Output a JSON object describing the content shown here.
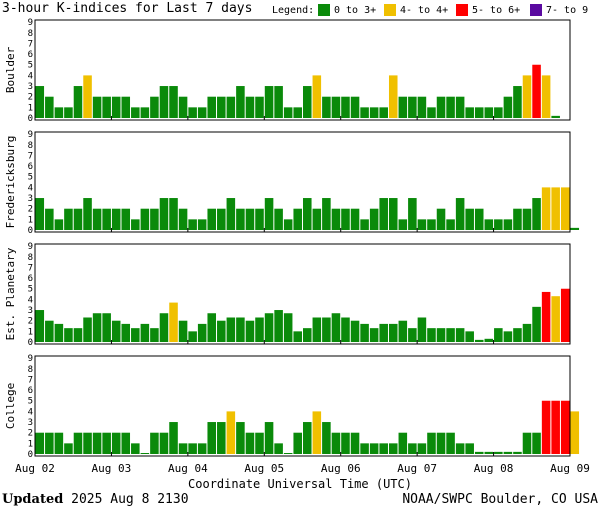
{
  "header": {
    "title": "3-hour K-indices for Last 7 days",
    "legend_label": "Legend:"
  },
  "legend": [
    {
      "label": "0 to 3+",
      "color": "#0a8a0a"
    },
    {
      "label": "4- to 4+",
      "color": "#f0c000"
    },
    {
      "label": "5- to 6+",
      "color": "#ff0000"
    },
    {
      "label": "7- to 9",
      "color": "#5a0aa0"
    }
  ],
  "footer": {
    "updated_label": "Updated",
    "updated_value": "2025 Aug  8 2130",
    "credit": "NOAA/SWPC Boulder, CO USA"
  },
  "chart_data": {
    "type": "bar",
    "xlabel": "Coordinate Universal Time (UTC)",
    "x_ticks": [
      "Aug 02",
      "Aug 03",
      "Aug 04",
      "Aug 05",
      "Aug 06",
      "Aug 07",
      "Aug 08",
      "Aug 09"
    ],
    "y_ticks": [
      0,
      1,
      2,
      3,
      4,
      5,
      6,
      7,
      8,
      9
    ],
    "ylim": [
      0,
      9
    ],
    "bins_per_day": 8,
    "grid": false,
    "panels": [
      {
        "name": "Boulder",
        "values": [
          3,
          2,
          1,
          1,
          3,
          4,
          2,
          2,
          2,
          2,
          1,
          1,
          2,
          3,
          3,
          2,
          1,
          1,
          2,
          2,
          2,
          3,
          2,
          2,
          3,
          3,
          1,
          1,
          3,
          4,
          2,
          2,
          2,
          2,
          1,
          1,
          1,
          4,
          2,
          2,
          2,
          1,
          2,
          2,
          2,
          1,
          1,
          1,
          1,
          2,
          3,
          4,
          5,
          4,
          0.2
        ]
      },
      {
        "name": "Fredericksburg",
        "values": [
          3,
          2,
          1,
          2,
          2,
          3,
          2,
          2,
          2,
          2,
          1,
          2,
          2,
          3,
          3,
          2,
          1,
          1,
          2,
          2,
          3,
          2,
          2,
          2,
          3,
          2,
          1,
          2,
          3,
          2,
          3,
          2,
          2,
          2,
          1,
          2,
          3,
          3,
          1,
          3,
          1,
          1,
          2,
          1,
          3,
          2,
          2,
          1,
          1,
          1,
          2,
          2,
          3,
          4,
          4,
          4,
          0.2
        ]
      },
      {
        "name": "Est. Planetary",
        "values": [
          3,
          2,
          1.7,
          1.3,
          1.3,
          2.3,
          2.7,
          2.7,
          2,
          1.7,
          1.3,
          1.7,
          1.3,
          2.7,
          3.7,
          2,
          1,
          1.7,
          2.7,
          2,
          2.3,
          2.3,
          2,
          2.3,
          2.7,
          3,
          2.7,
          1,
          1.3,
          2.3,
          2.3,
          2.7,
          2.3,
          2,
          1.7,
          1.3,
          1.7,
          1.7,
          2,
          1.3,
          2.3,
          1.3,
          1.3,
          1.3,
          1.3,
          1,
          0.2,
          0.3,
          1.3,
          1,
          1.3,
          1.7,
          3.3,
          4.7,
          4.3,
          5
        ]
      },
      {
        "name": "College",
        "values": [
          2,
          2,
          2,
          1,
          2,
          2,
          2,
          2,
          2,
          2,
          1,
          0,
          2,
          2,
          3,
          1,
          1,
          1,
          3,
          3,
          4,
          3,
          2,
          2,
          3,
          1,
          0,
          2,
          3,
          4,
          3,
          2,
          2,
          2,
          1,
          1,
          1,
          1,
          2,
          1,
          1,
          2,
          2,
          2,
          1,
          1,
          0.2,
          0.2,
          0.2,
          0.2,
          0.2,
          2,
          2,
          5,
          5,
          5,
          4
        ]
      }
    ]
  }
}
